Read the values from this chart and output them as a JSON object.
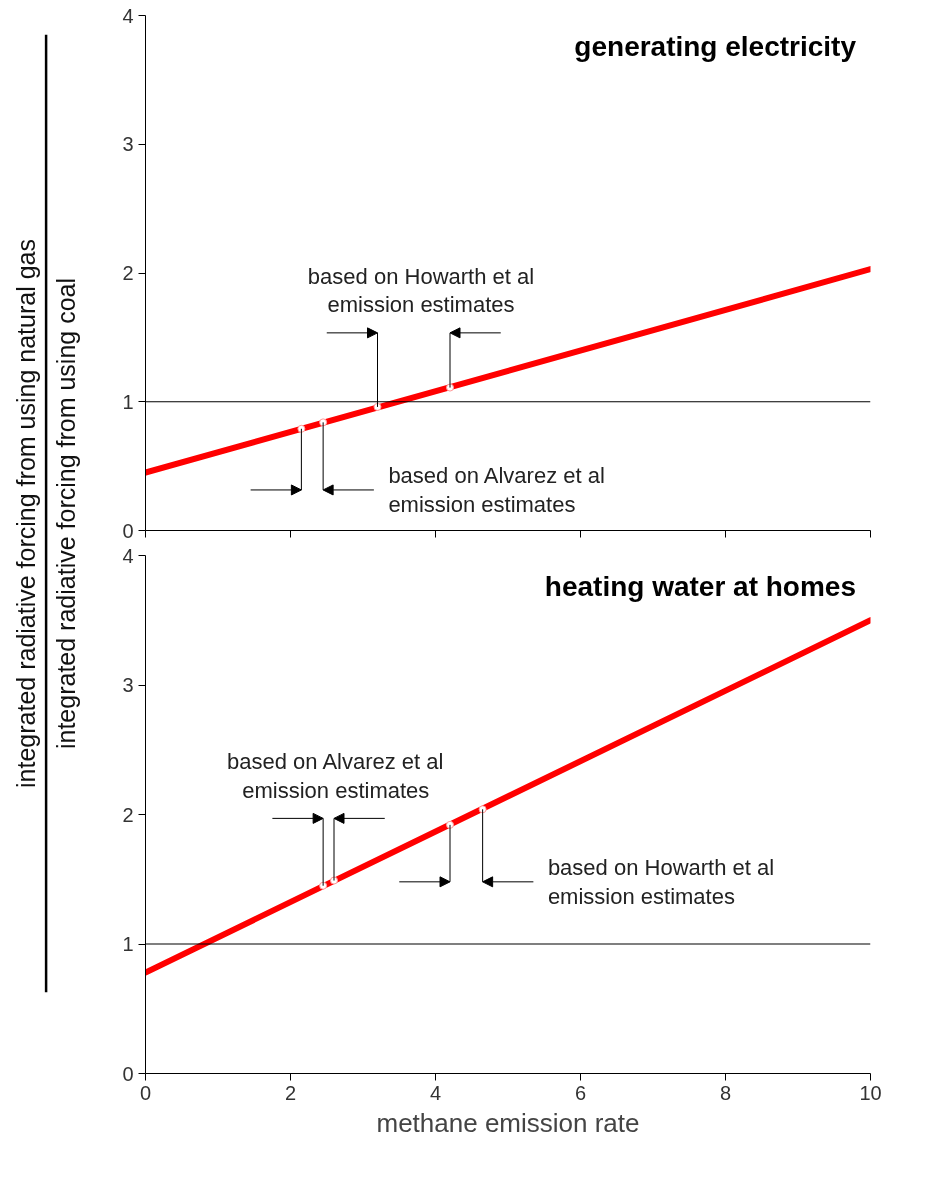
{
  "chart_data": [
    {
      "type": "line",
      "title": "generating electricity",
      "ylabel": "integrated radiative forcing from using natural gas\nintegrated radiative forcing from using coal",
      "xlim": [
        0,
        10
      ],
      "xticks": [
        0,
        2,
        4,
        6,
        8,
        10
      ],
      "ylim": [
        0,
        4
      ],
      "yticks": [
        0,
        1,
        2,
        3,
        4
      ],
      "tick_labels": "y",
      "grid": false,
      "series": [
        {
          "color": "#ff0000",
          "x": [
            0,
            10
          ],
          "values": [
            0.45,
            2.03
          ]
        },
        {
          "type": "scatter",
          "marker": "circle",
          "color": "#ffffff",
          "x": [
            3.2,
            4.2
          ],
          "values": [
            0.96,
            1.11
          ]
        },
        {
          "type": "scatter",
          "marker": "circle",
          "color": "#ffffff",
          "x": [
            2.15,
            2.45
          ],
          "values": [
            0.79,
            0.84
          ]
        }
      ],
      "ref_lines": [
        {
          "axis": "y",
          "value": 1,
          "color": "#000000"
        }
      ],
      "annotations": [
        "based on Howarth et al\nemission estimates",
        "based on Alvarez et al\nemission estimates"
      ]
    },
    {
      "type": "line",
      "title": "heating water at homes",
      "xlabel": "methane emission rate",
      "xlim": [
        0,
        10
      ],
      "xticks": [
        0,
        2,
        4,
        6,
        8,
        10
      ],
      "ylim": [
        0,
        4
      ],
      "yticks": [
        0,
        1,
        2,
        3,
        4
      ],
      "grid": false,
      "series": [
        {
          "color": "#ff0000",
          "x": [
            0,
            10
          ],
          "values": [
            0.78,
            3.5
          ]
        },
        {
          "type": "scatter",
          "marker": "circle",
          "color": "#ffffff",
          "x": [
            2.45,
            2.6
          ],
          "values": [
            1.45,
            1.49
          ]
        },
        {
          "type": "scatter",
          "marker": "circle",
          "color": "#ffffff",
          "x": [
            4.2,
            4.65
          ],
          "values": [
            1.92,
            2.04
          ]
        }
      ],
      "ref_lines": [
        {
          "axis": "y",
          "value": 1,
          "color": "#000000"
        }
      ],
      "annotations": [
        "based on Alvarez et al\nemission estimates",
        "based on Howarth et al\nemission estimates"
      ]
    }
  ]
}
